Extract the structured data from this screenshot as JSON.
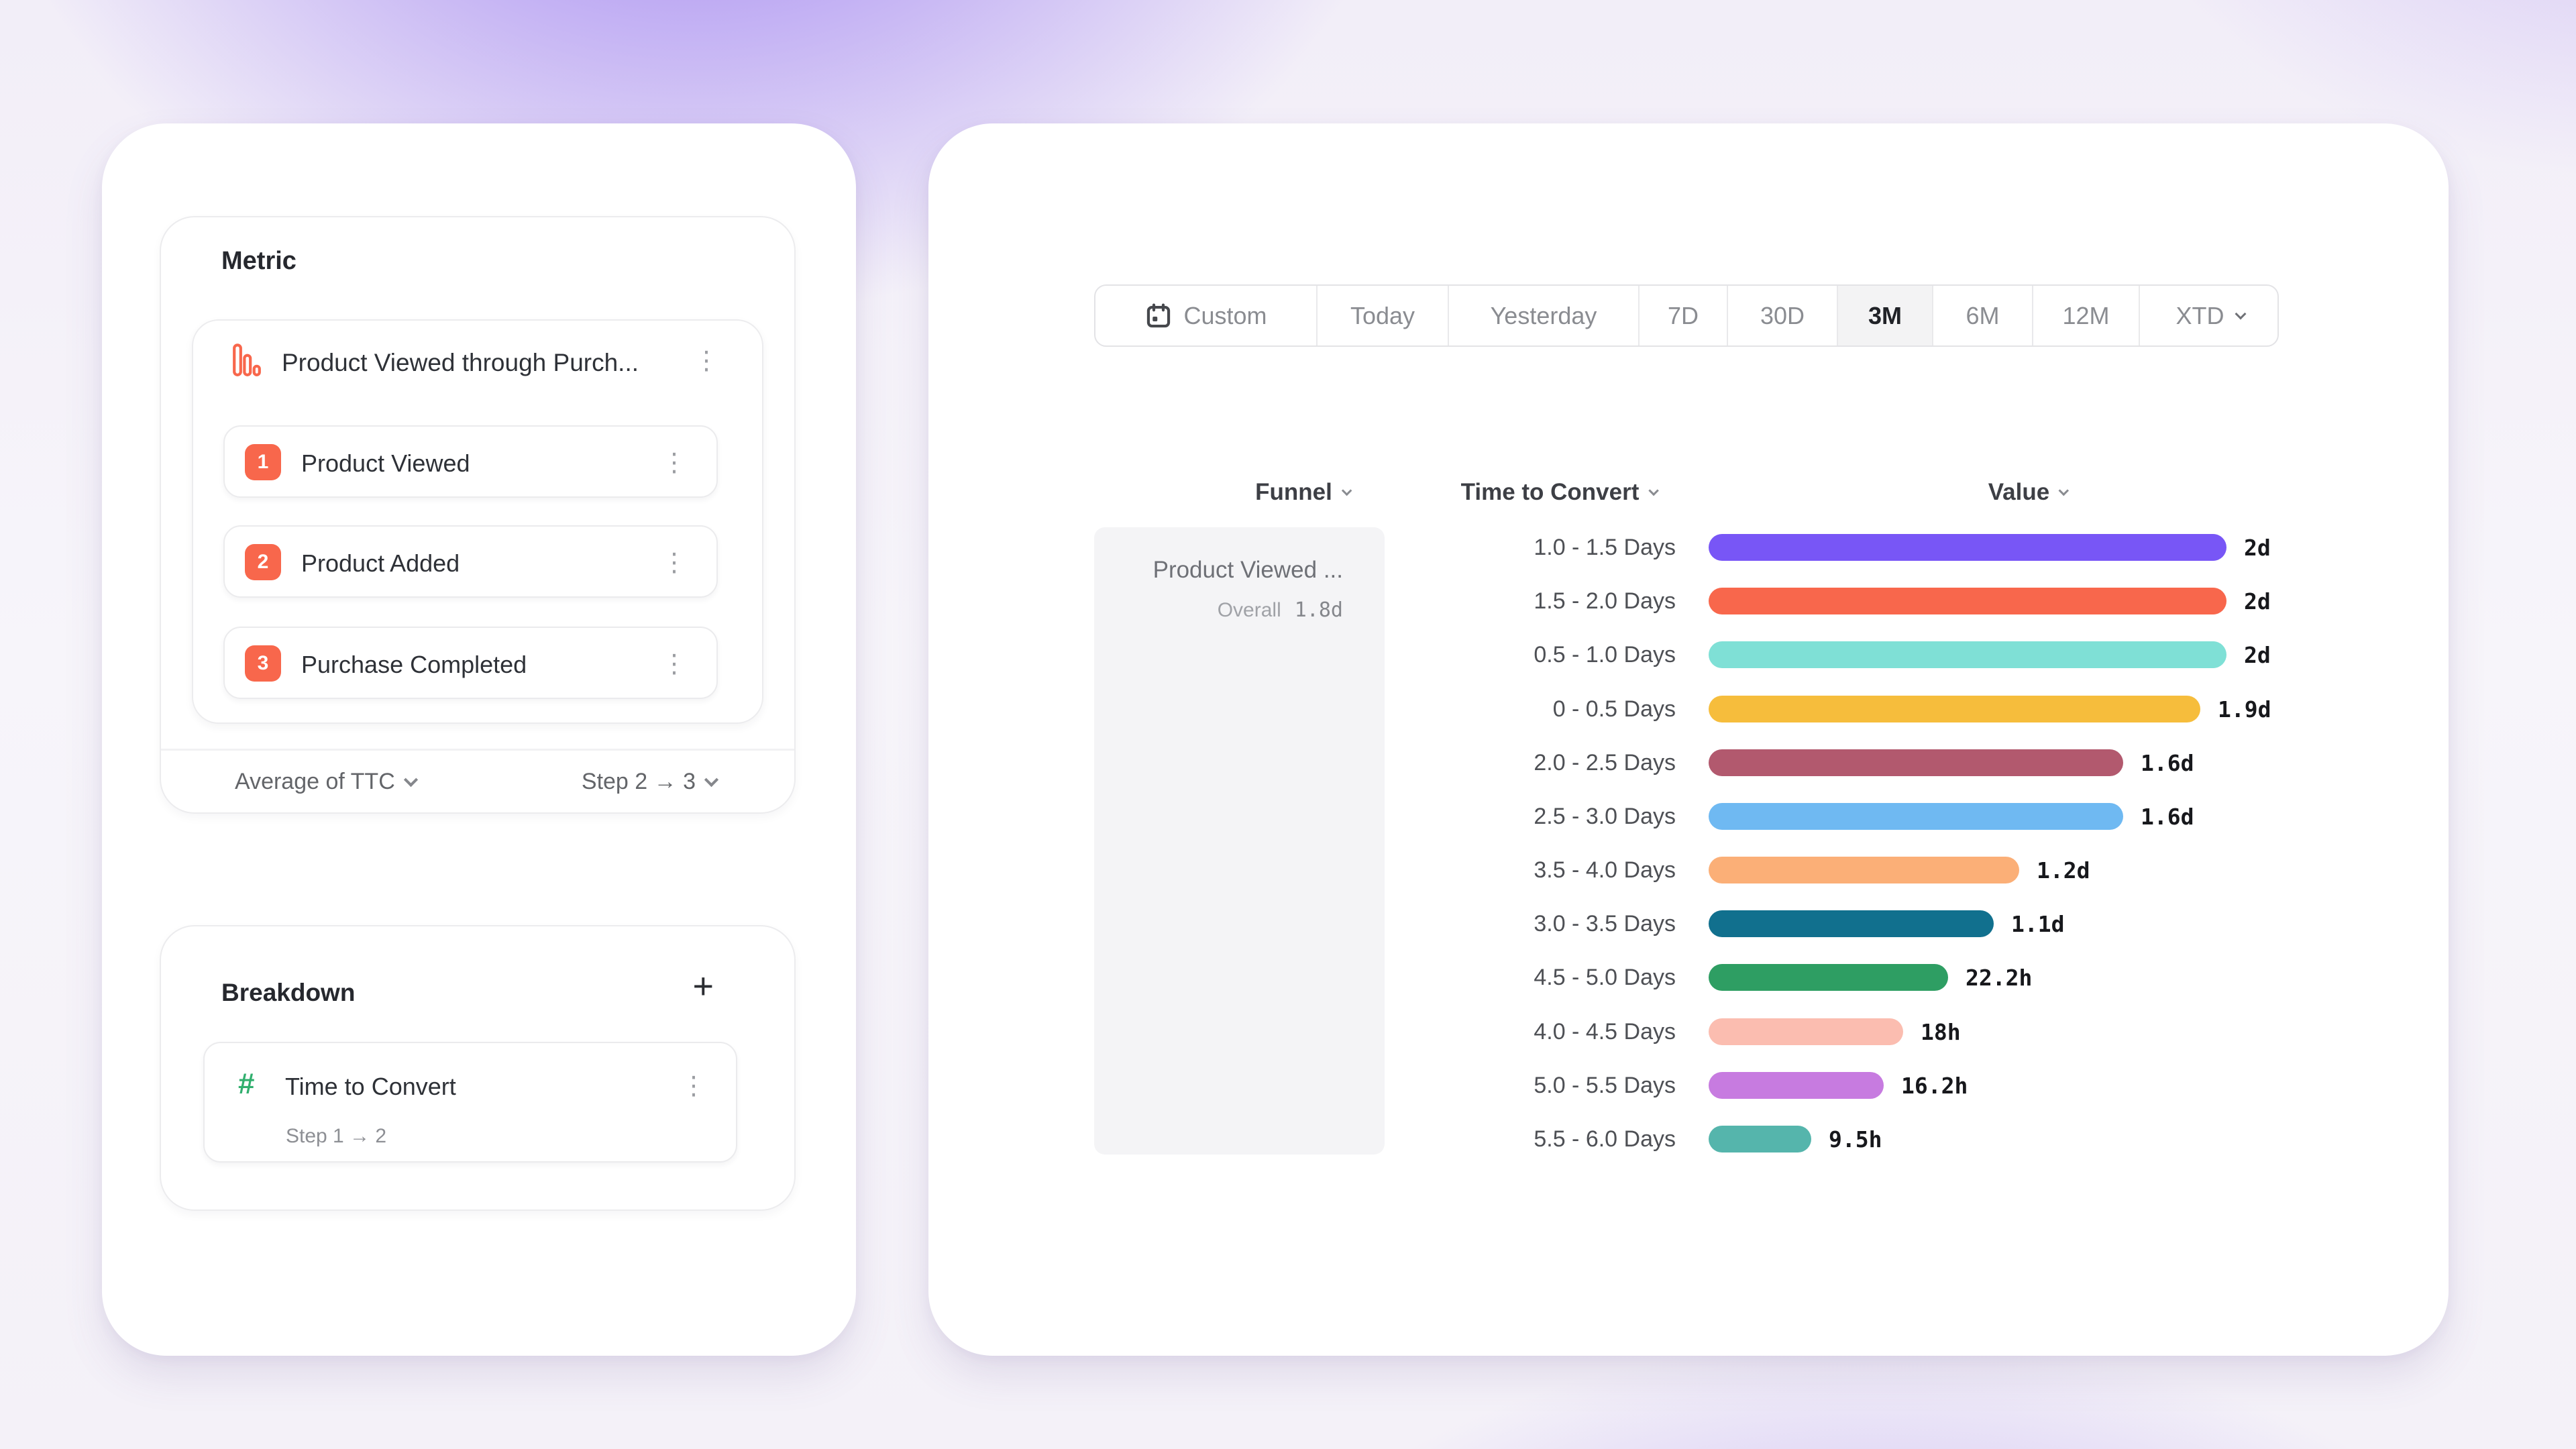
{
  "left_panel": {
    "metric": {
      "section_title": "Metric",
      "funnel_title": "Product Viewed through Purch...",
      "steps": [
        {
          "number": "1",
          "label": "Product Viewed"
        },
        {
          "number": "2",
          "label": "Product Added"
        },
        {
          "number": "3",
          "label": "Purchase Completed"
        }
      ],
      "aggregation": "Average of TTC",
      "step_range": "Step 2 → 3"
    },
    "breakdown": {
      "section_title": "Breakdown",
      "add_button": "+",
      "item": {
        "icon": "hash-icon",
        "label": "Time to Convert",
        "sublabel": "Step 1 → 2"
      }
    }
  },
  "right_panel": {
    "date_picker": {
      "selected": "3M",
      "options": [
        {
          "label": "Custom",
          "icon": "calendar-icon"
        },
        {
          "label": "Today"
        },
        {
          "label": "Yesterday"
        },
        {
          "label": "7D"
        },
        {
          "label": "30D"
        },
        {
          "label": "3M",
          "selected": true
        },
        {
          "label": "6M"
        },
        {
          "label": "12M"
        },
        {
          "label": "XTD",
          "chevron": true
        }
      ]
    },
    "table": {
      "columns": [
        {
          "label": "Funnel"
        },
        {
          "label": "Time to Convert"
        },
        {
          "label": "Value"
        }
      ],
      "funnel_cell": {
        "title": "Product Viewed ...",
        "overall_label": "Overall",
        "overall_value": "1.8d"
      }
    }
  },
  "chart_data": {
    "type": "bar",
    "orientation": "horizontal",
    "categories": [
      "1.0 - 1.5 Days",
      "1.5 - 2.0 Days",
      "0.5 - 1.0 Days",
      "0 - 0.5 Days",
      "2.0 - 2.5 Days",
      "2.5 - 3.0 Days",
      "3.5 - 4.0 Days",
      "3.0 - 3.5 Days",
      "4.5 - 5.0 Days",
      "4.0 - 4.5 Days",
      "5.0 - 5.5 Days",
      "5.5 - 6.0 Days"
    ],
    "value_labels": [
      "2d",
      "2d",
      "2d",
      "1.9d",
      "1.6d",
      "1.6d",
      "1.2d",
      "1.1d",
      "22.2h",
      "18h",
      "16.2h",
      "9.5h"
    ],
    "values_hours": [
      48,
      48,
      48,
      45.6,
      38.4,
      38.4,
      28.8,
      26.4,
      22.2,
      18,
      16.2,
      9.5
    ],
    "colors": [
      "#7856F6",
      "#F8674C",
      "#7FE0D6",
      "#F6BD3C",
      "#B2596E",
      "#6FB9F2",
      "#FBAF77",
      "#11708E",
      "#2E9E63",
      "#FBBDB0",
      "#C77BE0",
      "#55B5AC"
    ],
    "x_max_hours": 48,
    "unit": "hours",
    "grid": false,
    "legend": false
  }
}
